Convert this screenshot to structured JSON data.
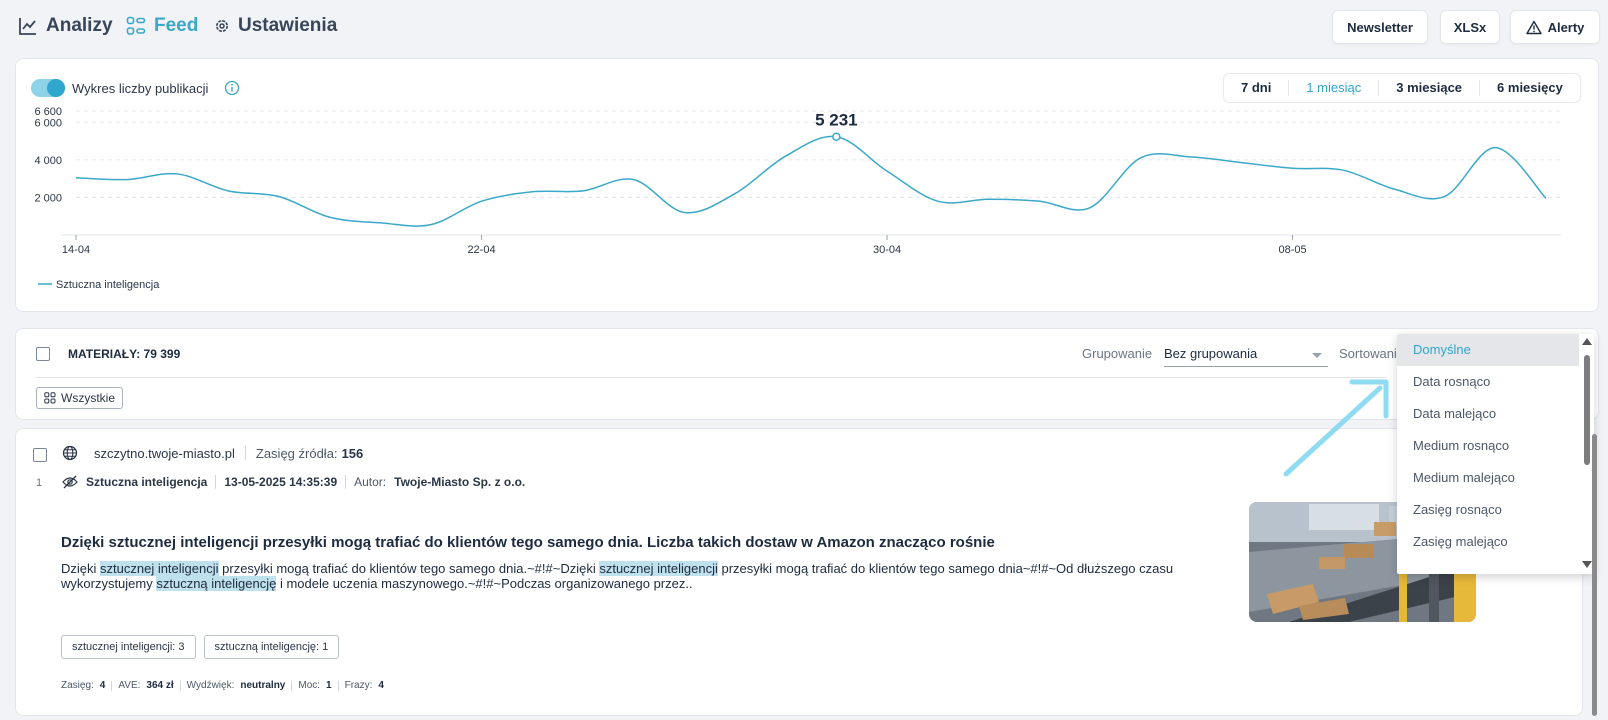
{
  "nav": {
    "analytics_label": "Analizy",
    "feed_label": "Feed",
    "settings_label": "Ustawienia",
    "newsletter_label": "Newsletter",
    "xlsx_label": "XLSx",
    "alerts_label": "Alerty",
    "accent_color": "#3aa8c8"
  },
  "chart_panel": {
    "toggle_label": "Wykres liczby publikacji",
    "toggle_on": true,
    "ranges": [
      "7 dni",
      "1 miesiąc",
      "3 miesiące",
      "6 miesięcy"
    ],
    "active_range": "1 miesiąc"
  },
  "chart_data": {
    "type": "line",
    "x": [
      "14-04",
      "15-04",
      "16-04",
      "17-04",
      "18-04",
      "19-04",
      "20-04",
      "21-04",
      "22-04",
      "23-04",
      "24-04",
      "25-04",
      "26-04",
      "27-04",
      "28-04",
      "29-04",
      "30-04",
      "01-05",
      "02-05",
      "03-05",
      "04-05",
      "05-05",
      "06-05",
      "07-05",
      "08-05",
      "09-05",
      "10-05",
      "11-05",
      "12-05",
      "13-05"
    ],
    "series": [
      {
        "name": "Sztuczna inteligencja",
        "color": "#3aa8c8",
        "values": [
          3050,
          2950,
          3250,
          2350,
          2050,
          950,
          650,
          550,
          1800,
          2300,
          2350,
          2950,
          1200,
          2200,
          4200,
          5231,
          3400,
          1800,
          1900,
          1800,
          1450,
          4100,
          4150,
          3850,
          3550,
          3450,
          2450,
          2050,
          4650,
          1950
        ]
      }
    ],
    "xticks": [
      "14-04",
      "22-04",
      "30-04",
      "08-05"
    ],
    "yticks": [
      "2 000",
      "4 000",
      "6 000",
      "6 600"
    ],
    "ylim": [
      0,
      6600
    ],
    "highlight_label": "5 231",
    "legend_entry": "Sztuczna inteligencja",
    "grid": true
  },
  "materials": {
    "title": "MATERIAŁY: 79 399",
    "grouping_label": "Grupowanie",
    "grouping_value": "Bez grupowania",
    "sorting_label": "Sortowanie",
    "all_chip_label": "Wszystkie"
  },
  "sort_dropdown": {
    "options": [
      "Domyślne",
      "Data rosnąco",
      "Data malejąco",
      "Medium rosnąco",
      "Medium malejąco",
      "Zasięg rosnąco",
      "Zasięg malejąco"
    ],
    "selected": "Domyślne"
  },
  "article": {
    "index": "1",
    "source": "szczytno.twoje-miasto.pl",
    "reach_label": "Zasięg źródła:",
    "reach_value": "156",
    "topic": "Sztuczna inteligencja",
    "datetime": "13-05-2025 14:35:39",
    "author_label": "Autor:",
    "author": "Twoje-Miasto Sp. z o.o.",
    "title": "Dzięki sztucznej inteligencji przesyłki mogą trafiać do klientów tego samego dnia. Liczba takich dostaw w Amazon znacząco rośnie",
    "body": {
      "p1": "Dzięki ",
      "h1": "sztucznej inteligencji",
      "p2": " przesyłki mogą trafiać do klientów tego samego dnia.~#!#~Dzięki ",
      "h2": "sztucznej inteligencji",
      "p3": " przesyłki mogą trafiać do klientów tego samego dnia~#!#~Od dłuższego czasu wykorzystujemy ",
      "h3": "sztuczną inteligencję",
      "p4": " i modele uczenia maszynowego.~#!#~Podczas organizowanego przez.."
    },
    "tags": [
      "sztucznej inteligencji: 3",
      "sztuczną inteligencję: 1"
    ],
    "stats": {
      "reach_label": "Zasięg:",
      "reach": "4",
      "ave_label": "AVE:",
      "ave": "364 zł",
      "sentiment_label": "Wydźwięk:",
      "sentiment": "neutralny",
      "power_label": "Moc:",
      "power": "1",
      "phrases_label": "Frazy:",
      "phrases": "4"
    }
  }
}
